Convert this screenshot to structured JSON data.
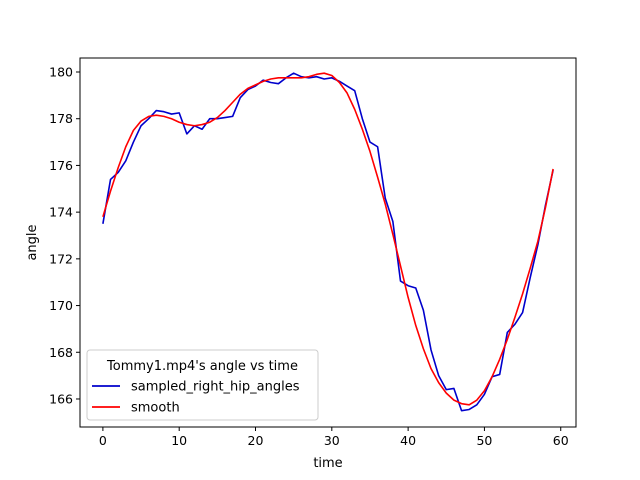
{
  "chart_data": {
    "type": "line",
    "title": "",
    "xlabel": "time",
    "ylabel": "angle",
    "xlim": [
      -3,
      62
    ],
    "ylim": [
      164.8,
      180.6
    ],
    "xticks": [
      0,
      10,
      20,
      30,
      40,
      50,
      60
    ],
    "yticks": [
      166,
      168,
      170,
      172,
      174,
      176,
      178,
      180
    ],
    "grid": false,
    "legend": {
      "title": "Tommy1.mp4's angle vs time",
      "placement": "lower-left"
    },
    "series": [
      {
        "name": "sampled_right_hip_angles",
        "color": "#0000cc",
        "x": [
          0,
          1,
          2,
          3,
          4,
          5,
          6,
          7,
          8,
          9,
          10,
          11,
          12,
          13,
          14,
          15,
          16,
          17,
          18,
          19,
          20,
          21,
          22,
          23,
          24,
          25,
          26,
          27,
          28,
          29,
          30,
          31,
          32,
          33,
          34,
          35,
          36,
          37,
          38,
          39,
          40,
          41,
          42,
          43,
          44,
          45,
          46,
          47,
          48,
          49,
          50,
          51,
          52,
          53,
          54,
          55,
          56,
          57,
          58,
          59
        ],
        "values": [
          173.5,
          175.4,
          175.7,
          176.2,
          177.0,
          177.7,
          178.0,
          178.35,
          178.3,
          178.2,
          178.25,
          177.35,
          177.7,
          177.55,
          178.0,
          178.0,
          178.05,
          178.1,
          178.9,
          179.25,
          179.4,
          179.65,
          179.55,
          179.5,
          179.75,
          179.95,
          179.8,
          179.75,
          179.8,
          179.7,
          179.75,
          179.6,
          179.4,
          179.2,
          178.0,
          177.0,
          176.8,
          174.6,
          173.6,
          171.05,
          170.85,
          170.75,
          169.8,
          168.1,
          167.0,
          166.4,
          166.45,
          165.5,
          165.55,
          165.75,
          166.2,
          166.95,
          167.05,
          168.85,
          169.2,
          169.7,
          171.2,
          172.6,
          174.3,
          175.8
        ]
      },
      {
        "name": "smooth",
        "color": "#ff0000",
        "x": [
          0,
          1,
          2,
          3,
          4,
          5,
          6,
          7,
          8,
          9,
          10,
          11,
          12,
          13,
          14,
          15,
          16,
          17,
          18,
          19,
          20,
          21,
          22,
          23,
          24,
          25,
          26,
          27,
          28,
          29,
          30,
          31,
          32,
          33,
          34,
          35,
          36,
          37,
          38,
          39,
          40,
          41,
          42,
          43,
          44,
          45,
          46,
          47,
          48,
          49,
          50,
          51,
          52,
          53,
          54,
          55,
          56,
          57,
          58,
          59
        ],
        "values": [
          173.8,
          174.9,
          175.9,
          176.8,
          177.5,
          177.9,
          178.1,
          178.15,
          178.1,
          178.0,
          177.85,
          177.75,
          177.7,
          177.75,
          177.85,
          178.05,
          178.35,
          178.7,
          179.05,
          179.3,
          179.45,
          179.6,
          179.7,
          179.75,
          179.75,
          179.75,
          179.75,
          179.8,
          179.9,
          179.95,
          179.85,
          179.55,
          179.1,
          178.4,
          177.55,
          176.6,
          175.5,
          174.35,
          173.05,
          171.7,
          170.35,
          169.15,
          168.15,
          167.3,
          166.7,
          166.25,
          165.95,
          165.8,
          165.75,
          165.95,
          166.35,
          166.95,
          167.7,
          168.55,
          169.5,
          170.5,
          171.6,
          172.75,
          174.2,
          175.85
        ]
      }
    ]
  }
}
